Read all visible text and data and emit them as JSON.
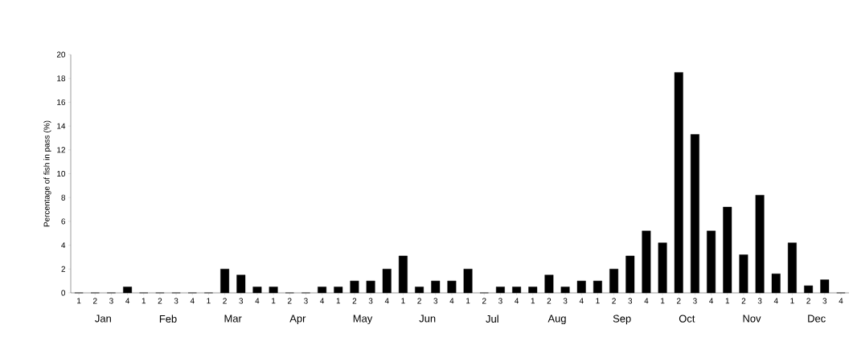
{
  "chart_data": {
    "type": "bar",
    "ylabel": "Percentage of fish in pass (%)",
    "categories": [
      "1",
      "2",
      "3",
      "4",
      "1",
      "2",
      "3",
      "4",
      "1",
      "2",
      "3",
      "4",
      "1",
      "2",
      "3",
      "4",
      "1",
      "2",
      "3",
      "4",
      "1",
      "2",
      "3",
      "4",
      "1",
      "2",
      "3",
      "4",
      "1",
      "2",
      "3",
      "4",
      "1",
      "2",
      "3",
      "4",
      "1",
      "2",
      "3",
      "4",
      "1",
      "2",
      "3",
      "4",
      "1",
      "2",
      "3",
      "4"
    ],
    "values": [
      0,
      0,
      0,
      0.5,
      0,
      0,
      0,
      0,
      0,
      2,
      1.5,
      0.5,
      0.5,
      0,
      0,
      0.5,
      0.5,
      1,
      1,
      2,
      3.1,
      0.5,
      1,
      1,
      2,
      0,
      0.5,
      0.5,
      0.5,
      1.5,
      0.5,
      1,
      1,
      2,
      3.1,
      5.2,
      4.2,
      18.5,
      13.3,
      5.2,
      7.2,
      3.2,
      8.2,
      1.6,
      4.2,
      0.6,
      1.1,
      0
    ],
    "color": "#000000",
    "ylim": [
      0,
      20
    ],
    "yticks": [
      0,
      2,
      4,
      6,
      8,
      10,
      12,
      14,
      16,
      18,
      20
    ],
    "annotations": [
      "Jan",
      "Feb",
      "Mar",
      "Apr",
      "May",
      "Jun",
      "Jul",
      "Aug",
      "Sep",
      "Oct",
      "Nov",
      "Dec"
    ]
  }
}
